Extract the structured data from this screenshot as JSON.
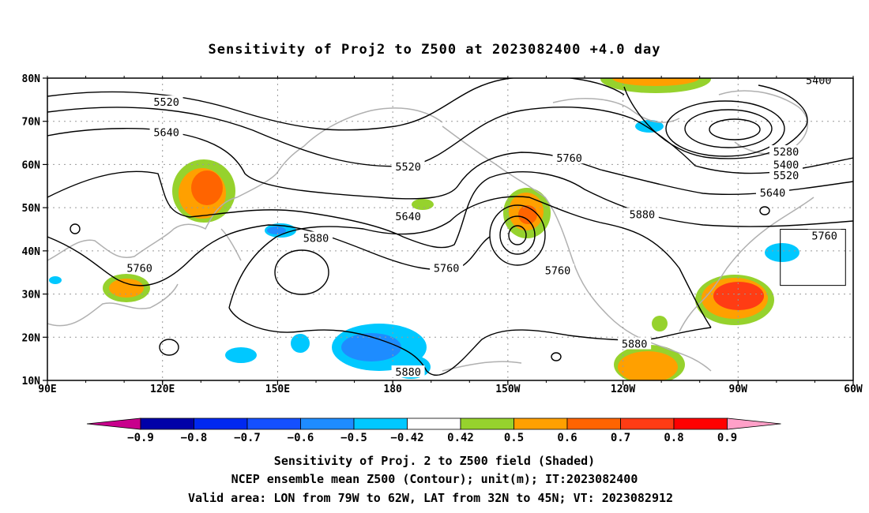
{
  "title": "Sensitivity of Proj2 to Z500 at 2023082400 +4.0 day",
  "map": {
    "lon_range": [
      90,
      300
    ],
    "lat_range": [
      10,
      80
    ],
    "lat_ticks": [
      {
        "lat": 80,
        "label": "80N"
      },
      {
        "lat": 70,
        "label": "70N"
      },
      {
        "lat": 60,
        "label": "60N"
      },
      {
        "lat": 50,
        "label": "50N"
      },
      {
        "lat": 40,
        "label": "40N"
      },
      {
        "lat": 30,
        "label": "30N"
      },
      {
        "lat": 20,
        "label": "20N"
      },
      {
        "lat": 10,
        "label": "10N"
      }
    ],
    "lon_ticks": [
      {
        "lon": 90,
        "label": "90E"
      },
      {
        "lon": 120,
        "label": "120E"
      },
      {
        "lon": 150,
        "label": "150E"
      },
      {
        "lon": 180,
        "label": "180"
      },
      {
        "lon": 210,
        "label": "150W"
      },
      {
        "lon": 240,
        "label": "120W"
      },
      {
        "lon": 270,
        "label": "90W"
      },
      {
        "lon": 300,
        "label": "60W"
      }
    ],
    "grid": "dotted",
    "valid_box": {
      "lon_min": -79,
      "lon_max": -62,
      "lat_min": 32,
      "lat_max": 45
    }
  },
  "contour_labels": [
    {
      "text": "5520",
      "lon": 121,
      "lat": 74.5
    },
    {
      "text": "5640",
      "lon": 121,
      "lat": 67.5
    },
    {
      "text": "5520",
      "lon": 184,
      "lat": 59.5
    },
    {
      "text": "5640",
      "lon": 184,
      "lat": 48
    },
    {
      "text": "5760",
      "lon": 114,
      "lat": 36
    },
    {
      "text": "5880",
      "lon": 160,
      "lat": 43
    },
    {
      "text": "5760",
      "lon": 194,
      "lat": 36
    },
    {
      "text": "5760",
      "lon": 226,
      "lat": 61.5
    },
    {
      "text": "5760",
      "lon": 223,
      "lat": 35.5
    },
    {
      "text": "5880",
      "lon": 245,
      "lat": 48.5
    },
    {
      "text": "5880",
      "lon": 243,
      "lat": 18.5
    },
    {
      "text": "5880",
      "lon": 184,
      "lat": 12
    },
    {
      "text": "5400",
      "lon": 291,
      "lat": 79.5
    },
    {
      "text": "5280",
      "lon": 282.5,
      "lat": 63
    },
    {
      "text": "5400",
      "lon": 282.5,
      "lat": 60
    },
    {
      "text": "5520",
      "lon": 282.5,
      "lat": 57.5
    },
    {
      "text": "5640",
      "lon": 279,
      "lat": 53.5
    },
    {
      "text": "5760",
      "lon": 292.5,
      "lat": 43.5
    }
  ],
  "colorbar": {
    "labels": [
      "-0.9",
      "-0.8",
      "-0.7",
      "-0.6",
      "-0.5",
      "-0.42",
      "0.42",
      "0.5",
      "0.6",
      "0.7",
      "0.8",
      "0.9"
    ],
    "colors": [
      "#0000a8",
      "#0028f0",
      "#1450ff",
      "#1e8cff",
      "#00c8ff",
      "#ffffff",
      "#96d22d",
      "#ffa000",
      "#ff6400",
      "#ff3c14",
      "#ff0000"
    ],
    "low_end_color": "#c8008c",
    "high_end_color": "#ffa0c8"
  },
  "caption": {
    "line1": "Sensitivity of Proj. 2 to Z500 field (Shaded)",
    "line2": "NCEP ensemble mean Z500 (Contour); unit(m); IT:2023082400",
    "line3": "Valid area: LON from 79W to 62W, LAT from 32N to 45N; VT: 2023082912"
  }
}
